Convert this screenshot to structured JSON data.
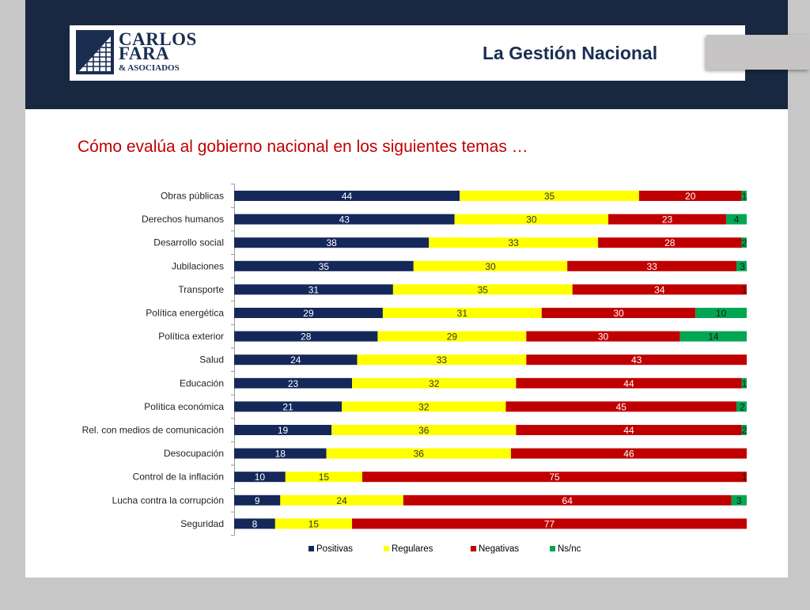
{
  "header": {
    "logo": {
      "line1": "CARLOS",
      "line2": "FARA",
      "line3": "& ASOCIADOS"
    },
    "section_title": "La Gestión Nacional"
  },
  "question": "Cómo evalúa al gobierno nacional en los siguientes temas …",
  "chart_data": {
    "type": "bar",
    "orientation": "horizontal",
    "stacked": true,
    "title": "",
    "xlabel": "",
    "ylabel": "",
    "xlim": [
      0,
      100
    ],
    "legend_position": "bottom",
    "categories": [
      "Obras públicas",
      "Derechos humanos",
      "Desarrollo social",
      "Jubilaciones",
      "Transporte",
      "Política energética",
      "Política exterior",
      "Salud",
      "Educación",
      "Política económica",
      "Rel. con medios de comunicación",
      "Desocupación",
      "Control de la inflación",
      "Lucha contra la corrupción",
      "Seguridad"
    ],
    "series": [
      {
        "name": "Positivas",
        "color": "#14285a",
        "label_color": "#ffffff",
        "values": [
          44,
          43,
          38,
          35,
          31,
          29,
          28,
          24,
          23,
          21,
          19,
          18,
          10,
          9,
          8
        ]
      },
      {
        "name": "Regulares",
        "color": "#ffff00",
        "label_color": "#333333",
        "values": [
          35,
          30,
          33,
          30,
          35,
          31,
          29,
          33,
          32,
          32,
          36,
          36,
          15,
          24,
          15
        ]
      },
      {
        "name": "Negativas",
        "color": "#c00000",
        "label_color": "#ffffff",
        "values": [
          20,
          23,
          28,
          33,
          34,
          30,
          30,
          43,
          44,
          45,
          44,
          46,
          75,
          64,
          77
        ]
      },
      {
        "name": "Ns/nc",
        "color": "#00a651",
        "label_color": "#1a1a1a",
        "values": [
          1,
          4,
          2,
          3,
          1,
          10,
          14,
          null,
          1,
          2,
          2,
          null,
          1,
          3,
          null
        ]
      }
    ]
  }
}
